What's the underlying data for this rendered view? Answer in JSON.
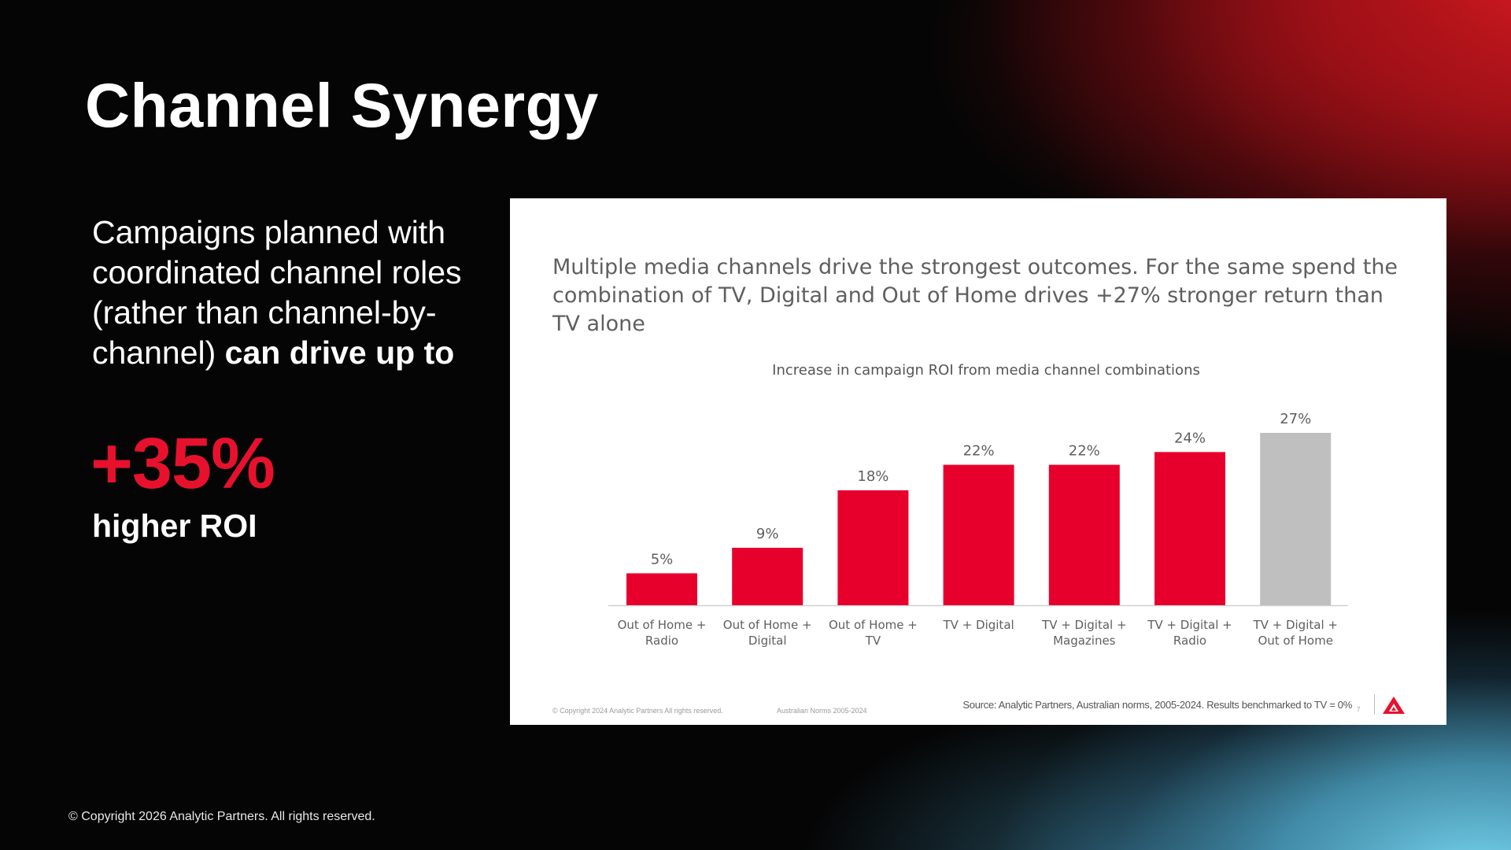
{
  "slide": {
    "title": "Channel Synergy",
    "left_text_regular": "Campaigns planned with coordinated channel roles (rather than channel-by-channel) ",
    "left_text_bold": "can drive up to",
    "big_stat": "+35%",
    "stat_caption": "higher ROI",
    "footer_copyright": "© Copyright 2026 Analytic Partners. All rights reserved."
  },
  "card": {
    "headline": "Multiple media channels drive the strongest outcomes. For the same spend the combination of TV, Digital and Out of Home drives +27% stronger return than TV alone",
    "copyright_small": "© Copyright 2024 Analytic Partners All rights reserved.",
    "norms_small": "Australian Norms 2005-2024",
    "source": "Source: Analytic Partners, Australian norms, 2005-2024. Results benchmarked to TV = 0%",
    "page_number": "7",
    "logo_icon": "analytic-partners-logo-icon"
  },
  "colors": {
    "accent_red": "#e8112d",
    "bar_red": "#e8002d",
    "bar_grey": "#bfbfbf",
    "label_grey": "#5f5f5f"
  },
  "chart_data": {
    "type": "bar",
    "title": "Increase in campaign ROI from media channel combinations",
    "categories": [
      [
        "Out of Home +",
        "Radio"
      ],
      [
        "Out of Home +",
        "Digital"
      ],
      [
        "Out of Home +",
        "TV"
      ],
      [
        "TV + Digital"
      ],
      [
        "TV + Digital +",
        "Magazines"
      ],
      [
        "TV + Digital +",
        "Radio"
      ],
      [
        "TV + Digital +",
        "Out of Home"
      ]
    ],
    "values": [
      5,
      9,
      18,
      22,
      22,
      24,
      27
    ],
    "data_labels": [
      "5%",
      "9%",
      "18%",
      "22%",
      "22%",
      "24%",
      "27%"
    ],
    "highlight": [
      false,
      false,
      false,
      false,
      false,
      false,
      true
    ],
    "ylim": [
      0,
      27
    ],
    "unit": "%",
    "grid": false,
    "legend": "none"
  }
}
